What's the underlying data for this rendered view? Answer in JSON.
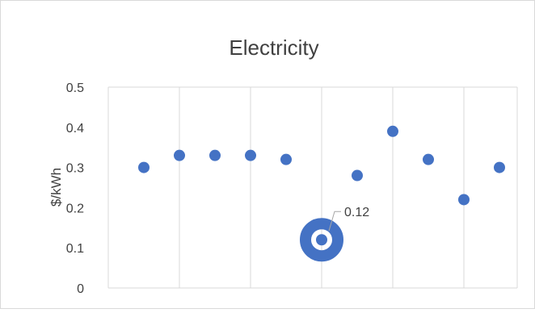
{
  "chart_data": {
    "type": "scatter",
    "title": "Electricity",
    "xlabel": "",
    "ylabel": "$/kWh",
    "x": [
      1,
      2,
      3,
      4,
      5,
      6,
      7,
      8,
      9,
      10,
      11
    ],
    "y": [
      0.3,
      0.33,
      0.33,
      0.33,
      0.32,
      0.12,
      0.28,
      0.39,
      0.32,
      0.22,
      0.3
    ],
    "xlim": [
      0,
      11.5
    ],
    "ylim": [
      0,
      0.5
    ],
    "y_ticks": [
      "0",
      "0.1",
      "0.2",
      "0.3",
      "0.4",
      "0.5"
    ],
    "grid": "vertical",
    "highlight": {
      "index": 5,
      "label": "0.12"
    },
    "colors": {
      "marker": "#4472C4",
      "grid": "#d9d9d9",
      "text": "#404040",
      "label": "#404040"
    }
  }
}
